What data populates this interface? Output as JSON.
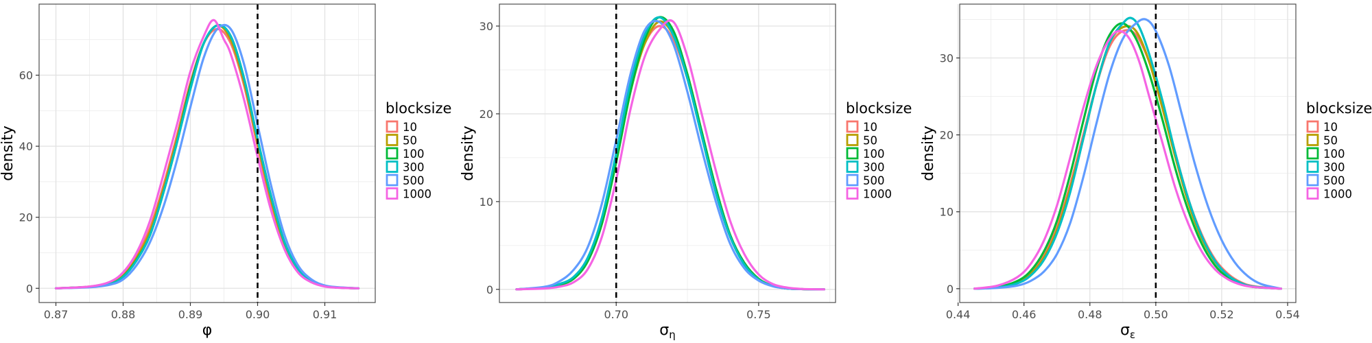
{
  "legend_title": "blocksize",
  "legend_entries": [
    {
      "label": "10",
      "color": "#F8766D"
    },
    {
      "label": "50",
      "color": "#B79F00"
    },
    {
      "label": "100",
      "color": "#00BA38"
    },
    {
      "label": "300",
      "color": "#00BFC4"
    },
    {
      "label": "500",
      "color": "#619CFF"
    },
    {
      "label": "1000",
      "color": "#F564E3"
    }
  ],
  "chart_data": [
    {
      "type": "line",
      "xlabel": "φ",
      "xlabel_subscript": "",
      "ylabel": "density",
      "xlim": [
        0.8675,
        0.9175
      ],
      "ylim": [
        -4,
        80
      ],
      "xticks": [
        0.87,
        0.88,
        0.89,
        0.9,
        0.91
      ],
      "xtick_labels": [
        "0.87",
        "0.88",
        "0.89",
        "0.90",
        "0.91"
      ],
      "yticks": [
        0,
        20,
        40,
        60
      ],
      "ytick_labels": [
        "0",
        "20",
        "40",
        "60"
      ],
      "reference_line": 0.9,
      "grid": true,
      "legend_position": "right",
      "series": [
        {
          "name": "10",
          "x": [
            0.87,
            0.875,
            0.878,
            0.88,
            0.882,
            0.884,
            0.886,
            0.888,
            0.89,
            0.892,
            0.894,
            0.896,
            0.898,
            0.9,
            0.902,
            0.904,
            0.906,
            0.908,
            0.91,
            0.912,
            0.915
          ],
          "y": [
            0,
            0.5,
            1.5,
            4,
            9,
            17,
            29,
            43,
            58,
            69,
            73,
            69,
            57,
            40,
            24,
            12,
            5,
            2,
            0.6,
            0.2,
            0
          ]
        },
        {
          "name": "50",
          "x": [
            0.87,
            0.875,
            0.878,
            0.88,
            0.882,
            0.884,
            0.886,
            0.888,
            0.89,
            0.892,
            0.894,
            0.896,
            0.898,
            0.9,
            0.902,
            0.904,
            0.906,
            0.908,
            0.91,
            0.912,
            0.915
          ],
          "y": [
            0,
            0.4,
            1.3,
            3.5,
            8.5,
            16,
            28,
            42,
            57,
            69,
            74,
            70,
            58,
            41,
            25,
            12,
            5,
            2,
            0.6,
            0.2,
            0
          ]
        },
        {
          "name": "100",
          "x": [
            0.87,
            0.875,
            0.878,
            0.88,
            0.882,
            0.884,
            0.886,
            0.888,
            0.89,
            0.892,
            0.894,
            0.896,
            0.898,
            0.9,
            0.902,
            0.904,
            0.906,
            0.908,
            0.91,
            0.912,
            0.915
          ],
          "y": [
            0,
            0.4,
            1.2,
            3.3,
            8,
            15,
            27,
            41,
            57,
            69,
            74,
            71,
            59,
            42,
            26,
            13,
            5.5,
            2,
            0.6,
            0.2,
            0
          ]
        },
        {
          "name": "300",
          "x": [
            0.87,
            0.875,
            0.878,
            0.88,
            0.882,
            0.884,
            0.886,
            0.888,
            0.89,
            0.892,
            0.894,
            0.896,
            0.898,
            0.9,
            0.902,
            0.904,
            0.906,
            0.908,
            0.91,
            0.912,
            0.915
          ],
          "y": [
            0,
            0.4,
            1.2,
            3.2,
            7.8,
            15,
            27,
            41,
            56,
            69,
            74,
            71,
            59,
            42,
            26,
            13,
            5.5,
            2,
            0.6,
            0.2,
            0
          ]
        },
        {
          "name": "500",
          "x": [
            0.87,
            0.875,
            0.878,
            0.88,
            0.882,
            0.884,
            0.886,
            0.888,
            0.89,
            0.892,
            0.894,
            0.896,
            0.898,
            0.9,
            0.902,
            0.904,
            0.906,
            0.908,
            0.91,
            0.912,
            0.915
          ],
          "y": [
            0,
            0.3,
            1,
            2.5,
            6.5,
            13,
            23,
            36,
            51,
            65,
            73,
            73,
            63,
            46,
            29,
            15,
            6.5,
            2.5,
            0.8,
            0.3,
            0
          ]
        },
        {
          "name": "1000",
          "x": [
            0.87,
            0.875,
            0.878,
            0.88,
            0.882,
            0.884,
            0.886,
            0.888,
            0.89,
            0.892,
            0.8935,
            0.895,
            0.896,
            0.898,
            0.9,
            0.902,
            0.904,
            0.906,
            0.908,
            0.91,
            0.912,
            0.915
          ],
          "y": [
            0,
            0.5,
            1.8,
            4.5,
            10,
            19,
            32,
            46,
            61,
            71,
            75.5,
            70,
            66,
            53,
            37,
            22,
            11,
            4.5,
            1.7,
            0.5,
            0.15,
            0
          ]
        }
      ]
    },
    {
      "type": "line",
      "xlabel": "σ",
      "xlabel_subscript": "η",
      "ylabel": "density",
      "xlim": [
        0.659,
        0.777
      ],
      "ylim": [
        -1.5,
        32.5
      ],
      "xticks": [
        0.7,
        0.75
      ],
      "xtick_labels": [
        "0.70",
        "0.75"
      ],
      "yticks": [
        0,
        10,
        20,
        30
      ],
      "ytick_labels": [
        "0",
        "10",
        "20",
        "30"
      ],
      "reference_line": 0.7,
      "grid": true,
      "legend_position": "right",
      "series": [
        {
          "name": "10",
          "x": [
            0.665,
            0.675,
            0.68,
            0.685,
            0.69,
            0.695,
            0.7,
            0.705,
            0.71,
            0.715,
            0.72,
            0.725,
            0.73,
            0.735,
            0.74,
            0.745,
            0.75,
            0.755,
            0.76,
            0.765,
            0.773
          ],
          "y": [
            0,
            0.2,
            0.5,
            1.3,
            3.5,
            8,
            15,
            23,
            28,
            30,
            28.5,
            24,
            17.5,
            11,
            6,
            3,
            1.2,
            0.4,
            0.1,
            0.03,
            0
          ]
        },
        {
          "name": "50",
          "x": [
            0.665,
            0.675,
            0.68,
            0.685,
            0.69,
            0.695,
            0.7,
            0.705,
            0.71,
            0.715,
            0.72,
            0.725,
            0.73,
            0.735,
            0.74,
            0.745,
            0.75,
            0.755,
            0.76,
            0.765,
            0.773
          ],
          "y": [
            0,
            0.2,
            0.5,
            1.2,
            3.2,
            7.5,
            14.5,
            22.5,
            28,
            30.5,
            29,
            24.5,
            18,
            11.5,
            6.2,
            3,
            1.2,
            0.4,
            0.1,
            0.03,
            0
          ]
        },
        {
          "name": "100",
          "x": [
            0.665,
            0.675,
            0.68,
            0.685,
            0.69,
            0.695,
            0.7,
            0.705,
            0.71,
            0.715,
            0.72,
            0.725,
            0.73,
            0.735,
            0.74,
            0.745,
            0.75,
            0.755,
            0.76,
            0.765,
            0.773
          ],
          "y": [
            0,
            0.2,
            0.5,
            1.2,
            3.2,
            7.5,
            14.5,
            22.5,
            28.5,
            31,
            29.5,
            24.5,
            18,
            11.5,
            6.2,
            3,
            1.2,
            0.4,
            0.1,
            0.03,
            0
          ]
        },
        {
          "name": "300",
          "x": [
            0.665,
            0.675,
            0.68,
            0.685,
            0.69,
            0.695,
            0.7,
            0.705,
            0.71,
            0.715,
            0.72,
            0.725,
            0.73,
            0.735,
            0.74,
            0.745,
            0.75,
            0.755,
            0.76,
            0.765,
            0.773
          ],
          "y": [
            0,
            0.2,
            0.6,
            1.4,
            3.6,
            8.2,
            15.5,
            23.5,
            29,
            31,
            29,
            24,
            17.5,
            11,
            6,
            2.8,
            1.1,
            0.4,
            0.1,
            0.03,
            0
          ]
        },
        {
          "name": "500",
          "x": [
            0.665,
            0.675,
            0.68,
            0.685,
            0.69,
            0.695,
            0.7,
            0.705,
            0.71,
            0.715,
            0.72,
            0.725,
            0.73,
            0.735,
            0.74,
            0.745,
            0.75,
            0.755,
            0.76,
            0.765,
            0.773
          ],
          "y": [
            0,
            0.3,
            0.9,
            2.2,
            4.8,
            9.8,
            17,
            24.5,
            29.5,
            30.5,
            28,
            22.5,
            16,
            10,
            5.2,
            2.4,
            1,
            0.35,
            0.1,
            0.03,
            0
          ]
        },
        {
          "name": "1000",
          "x": [
            0.665,
            0.675,
            0.68,
            0.685,
            0.69,
            0.695,
            0.7,
            0.705,
            0.71,
            0.715,
            0.72,
            0.725,
            0.73,
            0.735,
            0.74,
            0.745,
            0.75,
            0.755,
            0.76,
            0.765,
            0.773
          ],
          "y": [
            0,
            0.1,
            0.3,
            0.8,
            2.3,
            6,
            12.5,
            20.5,
            26.5,
            29.5,
            30.5,
            26.5,
            20,
            13.5,
            7.8,
            4,
            1.7,
            0.6,
            0.2,
            0.05,
            0
          ]
        }
      ]
    },
    {
      "type": "line",
      "xlabel": "σ",
      "xlabel_subscript": "ε",
      "ylabel": "density",
      "xlim": [
        0.4405,
        0.5425
      ],
      "ylim": [
        -1.8,
        37
      ],
      "xticks": [
        0.44,
        0.46,
        0.48,
        0.5,
        0.52,
        0.54
      ],
      "xtick_labels": [
        "0.44",
        "0.46",
        "0.48",
        "0.50",
        "0.52",
        "0.54"
      ],
      "yticks": [
        0,
        10,
        20,
        30
      ],
      "ytick_labels": [
        "0",
        "10",
        "20",
        "30"
      ],
      "reference_line": 0.5,
      "grid": true,
      "legend_position": "right",
      "series": [
        {
          "name": "10",
          "x": [
            0.445,
            0.452,
            0.458,
            0.462,
            0.466,
            0.47,
            0.474,
            0.478,
            0.482,
            0.486,
            0.49,
            0.494,
            0.498,
            0.502,
            0.506,
            0.51,
            0.514,
            0.518,
            0.522,
            0.526,
            0.53,
            0.538
          ],
          "y": [
            0,
            0.2,
            0.9,
            2,
            4.3,
            8,
            13.5,
            20,
            26.5,
            31.5,
            33.5,
            33,
            29.5,
            24,
            17.5,
            11.5,
            7,
            3.8,
            1.9,
            0.8,
            0.3,
            0
          ]
        },
        {
          "name": "50",
          "x": [
            0.445,
            0.452,
            0.458,
            0.462,
            0.466,
            0.47,
            0.474,
            0.478,
            0.482,
            0.486,
            0.49,
            0.494,
            0.498,
            0.502,
            0.506,
            0.51,
            0.514,
            0.518,
            0.522,
            0.526,
            0.53,
            0.538
          ],
          "y": [
            0,
            0.2,
            0.8,
            1.9,
            4,
            7.6,
            13,
            19.5,
            26.5,
            32,
            34,
            33.5,
            29.5,
            23.5,
            17,
            11,
            6.5,
            3.5,
            1.7,
            0.7,
            0.25,
            0
          ]
        },
        {
          "name": "100",
          "x": [
            0.445,
            0.452,
            0.458,
            0.462,
            0.466,
            0.47,
            0.474,
            0.478,
            0.482,
            0.486,
            0.49,
            0.494,
            0.498,
            0.502,
            0.506,
            0.51,
            0.514,
            0.518,
            0.522,
            0.526,
            0.53,
            0.538
          ],
          "y": [
            0,
            0.2,
            1,
            2.3,
            4.8,
            8.8,
            14.8,
            21.8,
            28.5,
            33,
            34.5,
            32.5,
            28,
            22,
            15.5,
            10,
            5.8,
            3,
            1.4,
            0.6,
            0.2,
            0
          ]
        },
        {
          "name": "300",
          "x": [
            0.445,
            0.452,
            0.458,
            0.462,
            0.466,
            0.47,
            0.474,
            0.478,
            0.482,
            0.486,
            0.49,
            0.4925,
            0.495,
            0.498,
            0.502,
            0.506,
            0.51,
            0.514,
            0.518,
            0.522,
            0.526,
            0.53,
            0.538
          ],
          "y": [
            0,
            0.15,
            0.7,
            1.7,
            3.7,
            7.2,
            12.5,
            19.5,
            26.5,
            32,
            34.5,
            35.2,
            34,
            30.5,
            24.5,
            17.5,
            11.5,
            6.8,
            3.6,
            1.7,
            0.7,
            0.25,
            0
          ]
        },
        {
          "name": "500",
          "x": [
            0.445,
            0.452,
            0.458,
            0.462,
            0.466,
            0.47,
            0.474,
            0.478,
            0.482,
            0.486,
            0.49,
            0.494,
            0.497,
            0.5,
            0.504,
            0.508,
            0.512,
            0.516,
            0.52,
            0.524,
            0.528,
            0.532,
            0.538
          ],
          "y": [
            0,
            0.1,
            0.4,
            1,
            2.2,
            4.5,
            8.5,
            14.5,
            21.5,
            28,
            32.5,
            34.5,
            35,
            33.5,
            29,
            22.5,
            16,
            10.5,
            6.3,
            3.4,
            1.6,
            0.6,
            0
          ]
        },
        {
          "name": "1000",
          "x": [
            0.445,
            0.452,
            0.458,
            0.462,
            0.466,
            0.47,
            0.474,
            0.478,
            0.482,
            0.486,
            0.489,
            0.492,
            0.495,
            0.498,
            0.502,
            0.506,
            0.51,
            0.514,
            0.518,
            0.522,
            0.526,
            0.53,
            0.538
          ],
          "y": [
            0,
            0.4,
            1.5,
            3.2,
            6.2,
            10.8,
            17,
            23.5,
            29,
            32.5,
            33.5,
            32.5,
            29.5,
            25,
            19,
            13,
            8.3,
            4.8,
            2.5,
            1.2,
            0.5,
            0.2,
            0
          ]
        }
      ]
    }
  ]
}
